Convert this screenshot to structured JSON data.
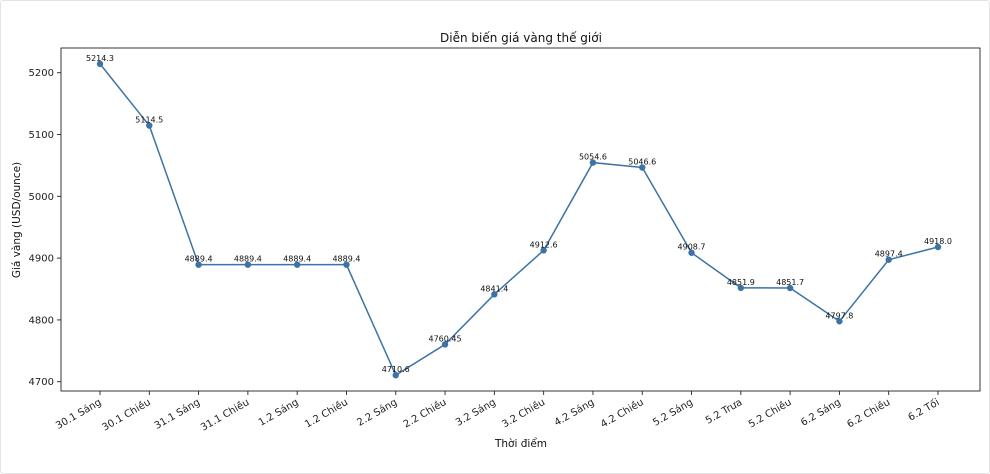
{
  "chart_data": {
    "type": "line",
    "title": "Diễn biến giá vàng thế giới",
    "xlabel": "Thời điểm",
    "ylabel": "Giá vàng (USD/ounce)",
    "categories": [
      "30.1 Sáng",
      "30.1 Chiều",
      "31.1 Sáng",
      "31.1 Chiều",
      "1.2 Sáng",
      "1.2 Chiều",
      "2.2 Sáng",
      "2.2 Chiều",
      "3.2 Sáng",
      "3.2 Chiều",
      "4.2 Sáng",
      "4.2 Chiều",
      "5.2 Sáng",
      "5.2 Trưa",
      "5.2 Chiều",
      "6.2 Sáng",
      "6.2 Chiều",
      "6.2 Tối"
    ],
    "values": [
      5214.3,
      5114.5,
      4889.4,
      4889.4,
      4889.4,
      4889.4,
      4710.6,
      4760.45,
      4841.4,
      4912.6,
      5054.6,
      5046.6,
      4908.7,
      4851.9,
      4851.7,
      4797.8,
      4897.4,
      4918.0
    ],
    "value_labels": [
      "5214.3",
      "5114.5",
      "4889.4",
      "4889.4",
      "4889.4",
      "4889.4",
      "4710.6",
      "4760.45",
      "4841.4",
      "4912.6",
      "5054.6",
      "5046.6",
      "4908.7",
      "4851.9",
      "4851.7",
      "4797.8",
      "4897.4",
      "4918.0"
    ],
    "ylim": [
      4685,
      5240
    ],
    "yticks": [
      4700,
      4800,
      4900,
      5000,
      5100,
      5200
    ],
    "ytick_labels": [
      "4700",
      "4800",
      "4900",
      "5000",
      "5100",
      "5200"
    ],
    "grid": false,
    "line_color": "#3b73a6",
    "marker_color": "#3b73a6"
  }
}
